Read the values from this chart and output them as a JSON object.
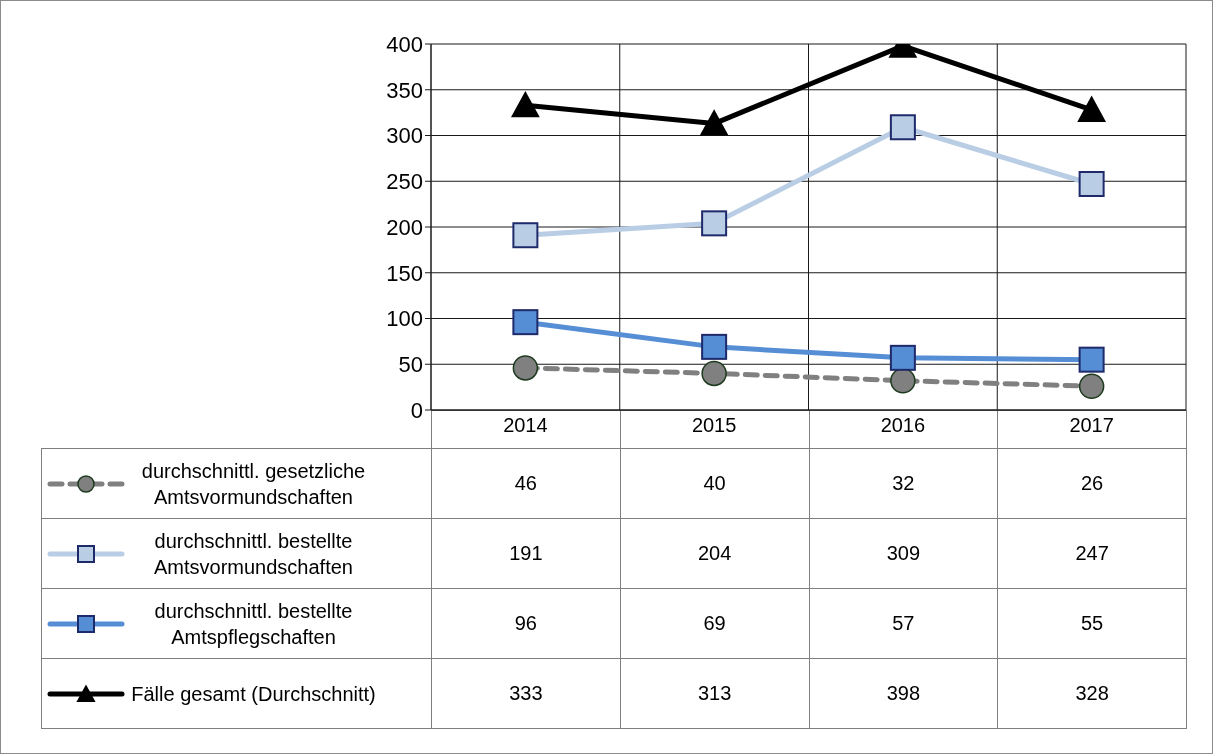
{
  "chart_data": {
    "type": "line",
    "categories": [
      "2014",
      "2015",
      "2016",
      "2017"
    ],
    "ylim": [
      0,
      400
    ],
    "yticks": [
      0,
      50,
      100,
      150,
      200,
      250,
      300,
      350,
      400
    ],
    "grid": true,
    "legend": "bottom",
    "data_labels": true,
    "series": [
      {
        "name": "durchschnittl. gesetzliche Amtsvormundschaften",
        "color": "#808080",
        "values": [
          46,
          40,
          32,
          26
        ],
        "marker": "circle",
        "line_style": "dashed"
      },
      {
        "name": "durchschnittl. bestellte Amtsvormundschaften",
        "color": "#b9cde5",
        "values": [
          191,
          204,
          309,
          247
        ],
        "marker": "square",
        "line_style": "solid"
      },
      {
        "name": "durchschnittl. bestellte Amtspflegschaften",
        "color": "#558ed5",
        "values": [
          96,
          69,
          57,
          55
        ],
        "marker": "square",
        "line_style": "solid"
      },
      {
        "name": "Fälle gesamt (Durchschnitt)",
        "color": "#000000",
        "values": [
          333,
          313,
          398,
          328
        ],
        "marker": "triangle",
        "line_style": "solid"
      }
    ]
  }
}
